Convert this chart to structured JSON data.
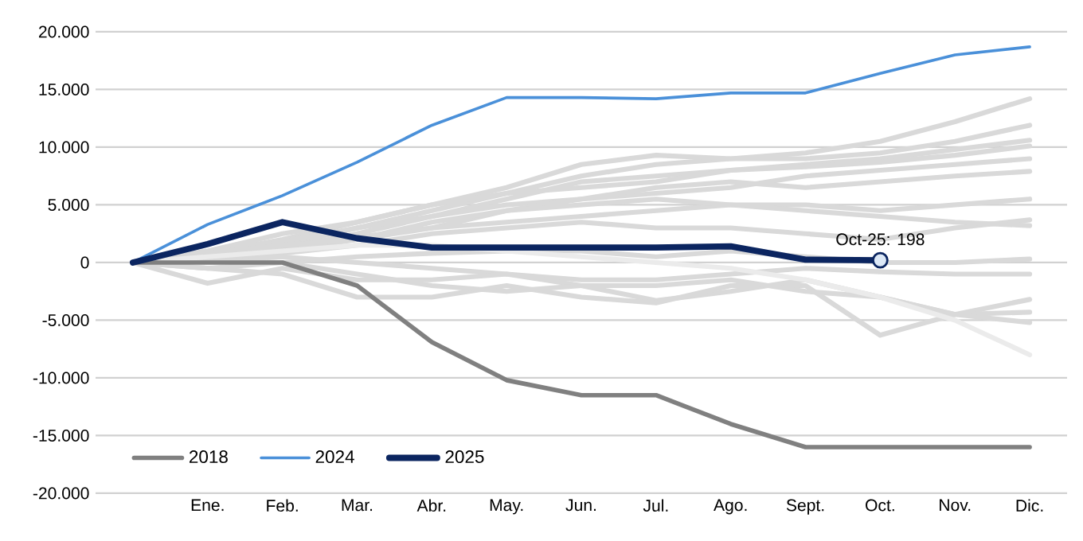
{
  "chart_data": {
    "type": "line",
    "categories": [
      null,
      "Ene.",
      "Feb.",
      "Mar.",
      "Abr.",
      "May.",
      "Jun.",
      "Jul.",
      "Ago.",
      "Sept.",
      "Oct.",
      "Nov.",
      "Dic."
    ],
    "series": [
      {
        "color": "#d9d9d9",
        "values": [
          0,
          500,
          1500,
          3000,
          4500,
          6000,
          7500,
          8500,
          9000,
          9500,
          10500,
          12200,
          14200
        ]
      },
      {
        "color": "#d9d9d9",
        "values": [
          0,
          800,
          2000,
          3500,
          5000,
          6500,
          8500,
          9300,
          9000,
          9000,
          9500,
          10500,
          11900
        ]
      },
      {
        "color": "#d9d9d9",
        "values": [
          0,
          300,
          1200,
          2500,
          4000,
          5500,
          7000,
          7500,
          8000,
          8500,
          9000,
          9800,
          10600
        ]
      },
      {
        "color": "#d9d9d9",
        "values": [
          0,
          1000,
          2500,
          3500,
          5000,
          6000,
          6500,
          7000,
          8000,
          8300,
          8700,
          9300,
          10100
        ]
      },
      {
        "color": "#d9d9d9",
        "values": [
          0,
          500,
          1800,
          3000,
          4000,
          5000,
          5500,
          6000,
          6500,
          7500,
          8000,
          8500,
          9000
        ]
      },
      {
        "color": "#d9d9d9",
        "values": [
          0,
          200,
          1000,
          2000,
          3000,
          4500,
          5500,
          6500,
          7000,
          6500,
          7000,
          7500,
          7900
        ]
      },
      {
        "color": "#d9d9d9",
        "values": [
          0,
          600,
          1500,
          2200,
          3000,
          3500,
          4000,
          4500,
          5000,
          5000,
          4500,
          5000,
          5500
        ]
      },
      {
        "color": "#d9d9d9",
        "values": [
          0,
          300,
          800,
          1500,
          2500,
          3000,
          3500,
          3000,
          3000,
          2500,
          2000,
          3000,
          3700
        ]
      },
      {
        "color": "#d9d9d9",
        "values": [
          0,
          800,
          1500,
          2000,
          3500,
          4500,
          5000,
          5500,
          5000,
          4500,
          4000,
          3500,
          3200
        ]
      },
      {
        "color": "#d9d9d9",
        "values": [
          0,
          -500,
          0,
          500,
          800,
          1000,
          1000,
          500,
          1000,
          500,
          0,
          0,
          300
        ]
      },
      {
        "color": "#d9d9d9",
        "values": [
          0,
          200,
          500,
          0,
          -500,
          -1000,
          -1500,
          -1500,
          -1000,
          -500,
          -800,
          -1000,
          -1000
        ]
      },
      {
        "color": "#d9d9d9",
        "values": [
          0,
          -1800,
          -500,
          -1500,
          -1500,
          -1000,
          -2000,
          -3300,
          -2500,
          -1500,
          -3000,
          -4500,
          -3200
        ]
      },
      {
        "color": "#d9d9d9",
        "values": [
          0,
          -500,
          -1000,
          -3000,
          -3000,
          -2000,
          -3000,
          -3500,
          -2000,
          -2000,
          -6300,
          -4500,
          -4300
        ]
      },
      {
        "color": "#d9d9d9",
        "values": [
          0,
          300,
          0,
          -1000,
          -2000,
          -2500,
          -2000,
          -2000,
          -1500,
          -2500,
          -3000,
          -4500,
          -5200
        ]
      },
      {
        "color": "#ebebeb",
        "values": [
          0,
          500,
          1000,
          1500,
          1500,
          1000,
          500,
          0,
          -500,
          -1500,
          -3000,
          -5000,
          -8000
        ]
      },
      {
        "name": "2018",
        "color": "#808080",
        "values": [
          0,
          0,
          0,
          -2000,
          -6900,
          -10200,
          -11500,
          -11500,
          -14000,
          -16000,
          -16000,
          -16000,
          -16000
        ]
      },
      {
        "name": "2024",
        "color": "#4a90d9",
        "values": [
          0,
          3300,
          5800,
          8700,
          11900,
          14300,
          14300,
          14200,
          14700,
          14700,
          16400,
          18000,
          18700
        ]
      },
      {
        "name": "2025",
        "color": "#0b2560",
        "values": [
          0,
          1600,
          3500,
          2100,
          1300,
          1300,
          1300,
          1300,
          1400,
          250,
          198,
          null,
          null
        ]
      }
    ],
    "ylim": [
      -20000,
      20000
    ],
    "yticks": [
      {
        "value": -20000,
        "label": "-20.000"
      },
      {
        "value": -15000,
        "label": "-15.000"
      },
      {
        "value": -10000,
        "label": "-10.000"
      },
      {
        "value": -5000,
        "label": "-5.000"
      },
      {
        "value": 0,
        "label": "0"
      },
      {
        "value": 5000,
        "label": "5.000"
      },
      {
        "value": 10000,
        "label": "10.000"
      },
      {
        "value": 15000,
        "label": "15.000"
      },
      {
        "value": 20000,
        "label": "20.000"
      }
    ],
    "grid": "y",
    "legend": "bottom left",
    "annotations": [
      {
        "text": "Oct-25: 198",
        "x": "Oct.",
        "y": 198
      }
    ]
  }
}
